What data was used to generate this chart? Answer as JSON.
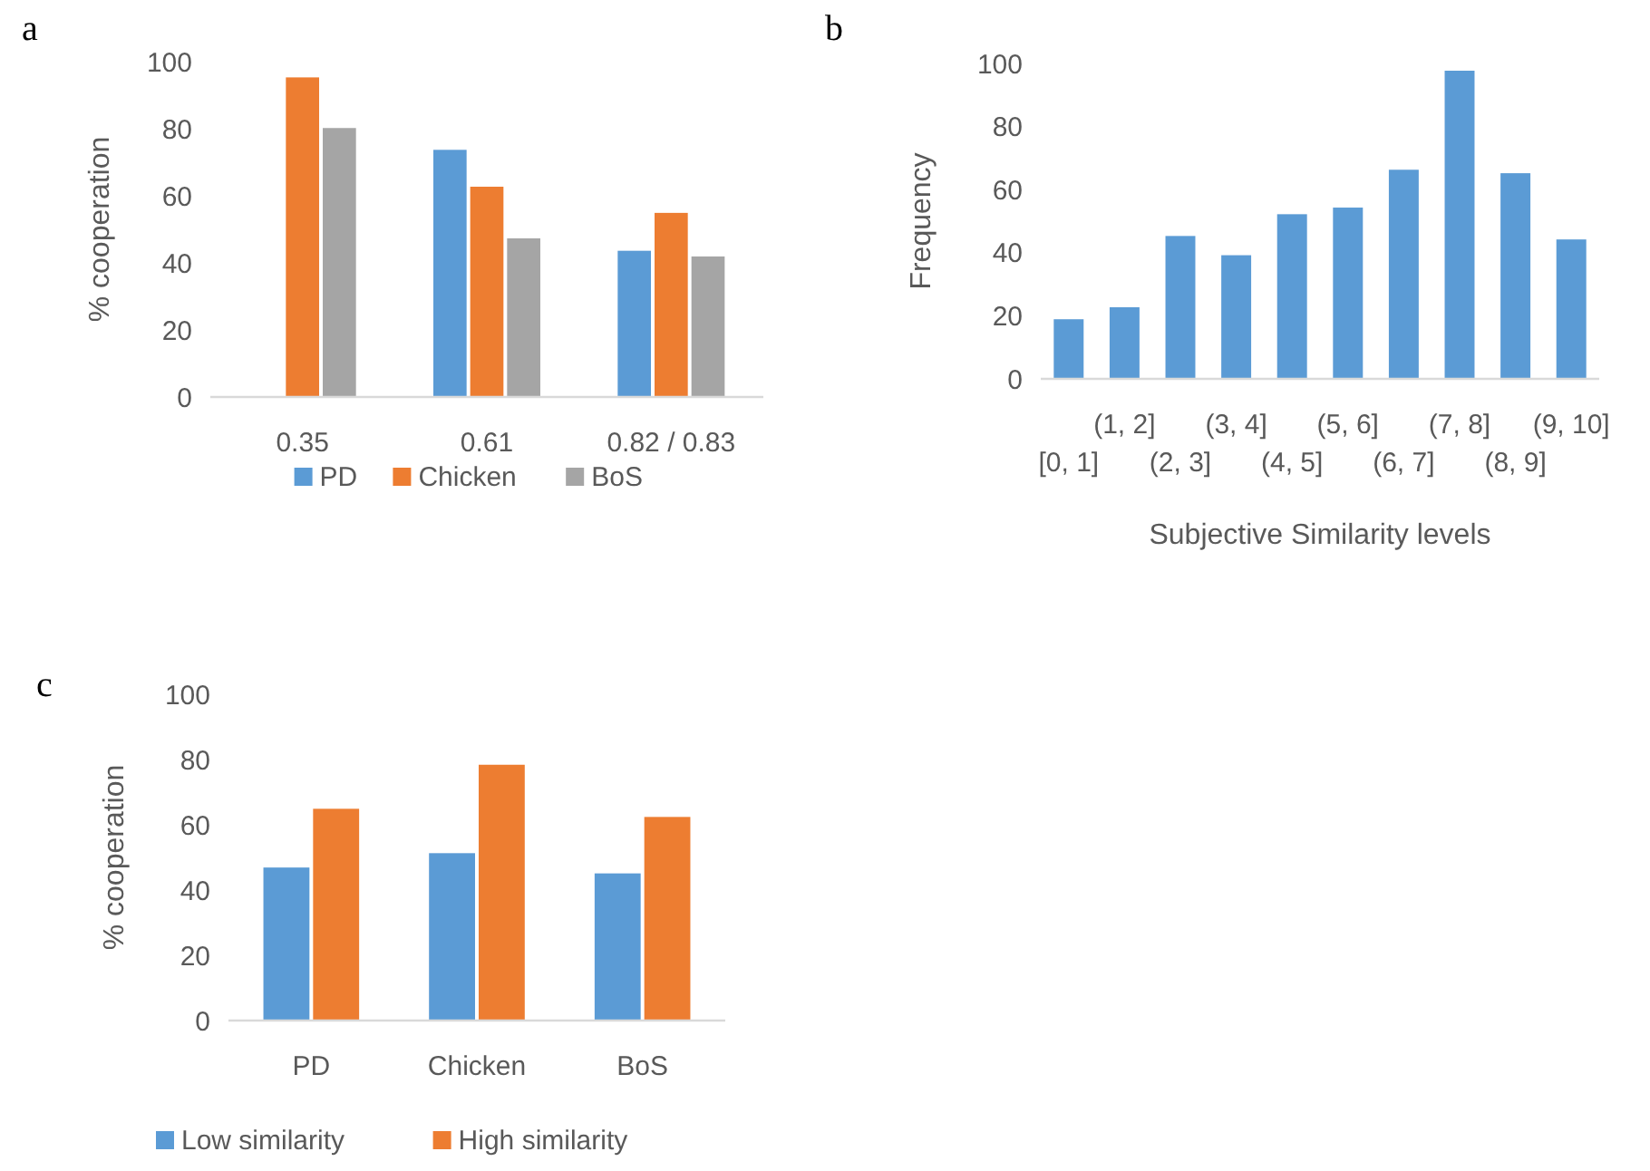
{
  "chart_data": [
    {
      "type": "bar",
      "title": "a",
      "ylabel": "% cooperation",
      "categories": [
        "0.35",
        "0.61",
        "0.82 / 0.83"
      ],
      "series": [
        {
          "name": "PD",
          "color": "#5b9bd5",
          "values": [
            null,
            73.7,
            43.6
          ]
        },
        {
          "name": "Chicken",
          "color": "#ed7d31",
          "values": [
            95.3,
            62.7,
            54.9
          ]
        },
        {
          "name": "BoS",
          "color": "#a5a5a5",
          "values": [
            80.2,
            47.3,
            41.9
          ]
        }
      ],
      "ylim": [
        0,
        100
      ],
      "yticks": [
        0,
        20,
        40,
        60,
        80,
        100
      ],
      "grid": false,
      "legend": "bottom"
    },
    {
      "type": "bar",
      "title": "b",
      "ylabel": "Frequency",
      "xlabel": "Subjective Similarity levels",
      "categories": [
        "[0, 1]",
        "(1, 2]",
        "(2, 3]",
        "(3, 4]",
        "(4, 5]",
        "(5, 6]",
        "(6, 7]",
        "(7, 8]",
        "(8, 9]",
        "(9, 10]"
      ],
      "series": [
        {
          "color": "#5b9bd5",
          "values": [
            18.9,
            22.7,
            45.3,
            39.2,
            52.2,
            54.3,
            66.3,
            97.7,
            65.2,
            44.2
          ]
        }
      ],
      "ylim": [
        0,
        100
      ],
      "yticks": [
        0,
        20,
        40,
        60,
        80,
        100
      ],
      "grid": false,
      "legend": false
    },
    {
      "type": "bar",
      "title": "c",
      "ylabel": "% cooperation",
      "categories": [
        "PD",
        "Chicken",
        "BoS"
      ],
      "series": [
        {
          "name": "Low similarity",
          "color": "#5b9bd5",
          "values": [
            46.9,
            51.3,
            45.1
          ]
        },
        {
          "name": "High similarity",
          "color": "#ed7d31",
          "values": [
            64.9,
            78.4,
            62.4
          ]
        }
      ],
      "ylim": [
        0,
        100
      ],
      "yticks": [
        0,
        20,
        40,
        60,
        80,
        100
      ],
      "grid": false,
      "legend": "bottom left"
    }
  ]
}
